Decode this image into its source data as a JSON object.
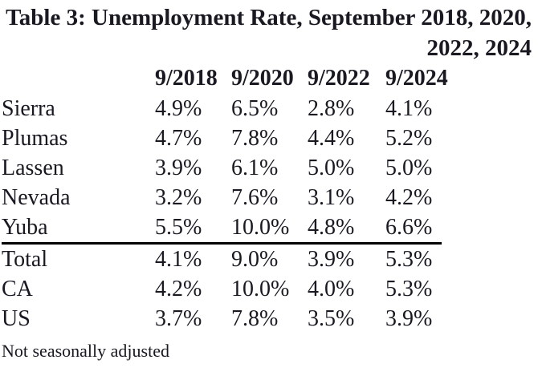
{
  "title": {
    "line1": "Table 3: Unemployment Rate, September 2018, 2020,",
    "line2": "2022, 2024"
  },
  "footnote": "Not seasonally adjusted",
  "colors": {
    "text": "#191922",
    "background": "#ffffff",
    "rule": "#000000"
  },
  "chart_data": {
    "type": "table",
    "title": "Table 3: Unemployment Rate, September 2018, 2020, 2022, 2024",
    "columns": [
      "9/2018",
      "9/2020",
      "9/2022",
      "9/2024"
    ],
    "row_header": "",
    "rows": [
      {
        "label": "Sierra",
        "values": [
          "4.9%",
          "6.5%",
          "2.8%",
          "4.1%"
        ],
        "rule_below": false
      },
      {
        "label": "Plumas",
        "values": [
          "4.7%",
          "7.8%",
          "4.4%",
          "5.2%"
        ],
        "rule_below": false
      },
      {
        "label": "Lassen",
        "values": [
          "3.9%",
          "6.1%",
          "5.0%",
          "5.0%"
        ],
        "rule_below": false
      },
      {
        "label": "Nevada",
        "values": [
          "3.2%",
          "7.6%",
          "3.1%",
          "4.2%"
        ],
        "rule_below": false
      },
      {
        "label": "Yuba",
        "values": [
          "5.5%",
          "10.0%",
          "4.8%",
          "6.6%"
        ],
        "rule_below": true
      },
      {
        "label": "Total",
        "values": [
          "4.1%",
          "9.0%",
          "3.9%",
          "5.3%"
        ],
        "rule_below": false
      },
      {
        "label": "CA",
        "values": [
          "4.2%",
          "10.0%",
          "4.0%",
          "5.3%"
        ],
        "rule_below": false
      },
      {
        "label": "US",
        "values": [
          "3.7%",
          "7.8%",
          "3.5%",
          "3.9%"
        ],
        "rule_below": false
      }
    ],
    "values_numeric": [
      [
        4.9,
        6.5,
        2.8,
        4.1
      ],
      [
        4.7,
        7.8,
        4.4,
        5.2
      ],
      [
        3.9,
        6.1,
        5.0,
        5.0
      ],
      [
        3.2,
        7.6,
        3.1,
        4.2
      ],
      [
        5.5,
        10.0,
        4.8,
        6.6
      ],
      [
        4.1,
        9.0,
        3.9,
        5.3
      ],
      [
        4.2,
        10.0,
        4.0,
        5.3
      ],
      [
        3.7,
        7.8,
        3.5,
        3.9
      ]
    ],
    "units": "percent",
    "footnote": "Not seasonally adjusted"
  }
}
